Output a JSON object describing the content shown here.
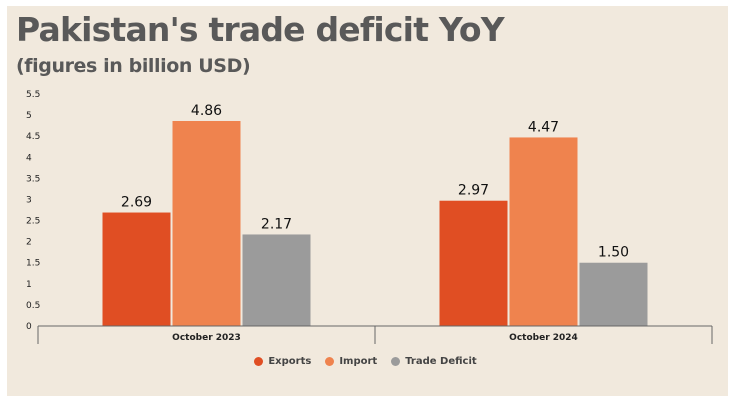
{
  "header": {
    "title": "Pakistan's trade deficit YoY",
    "subtitle": "(figures in billion USD)"
  },
  "chart_data": {
    "type": "bar",
    "title": "Pakistan's trade deficit YoY",
    "subtitle": "(figures in billion USD)",
    "categories": [
      "October 2023",
      "October 2024"
    ],
    "series": [
      {
        "name": "Exports",
        "values": [
          2.69,
          2.97
        ],
        "color": "#e04e23"
      },
      {
        "name": "Import",
        "values": [
          4.86,
          4.47
        ],
        "color": "#ef834e"
      },
      {
        "name": "Trade Deficit",
        "values": [
          2.17,
          1.5
        ],
        "color": "#9b9b9b"
      }
    ],
    "data_labels": [
      [
        "2.69",
        "4.86",
        "2.17"
      ],
      [
        "2.97",
        "4.47",
        "1.50"
      ]
    ],
    "ylim": [
      0,
      5.5
    ],
    "yticks": [
      "0",
      "0.5",
      "1",
      "1.5",
      "2",
      "2.5",
      "3",
      "3.5",
      "4",
      "4.5",
      "5",
      "5.5"
    ],
    "grid": false,
    "legend_position": "bottom-center"
  }
}
